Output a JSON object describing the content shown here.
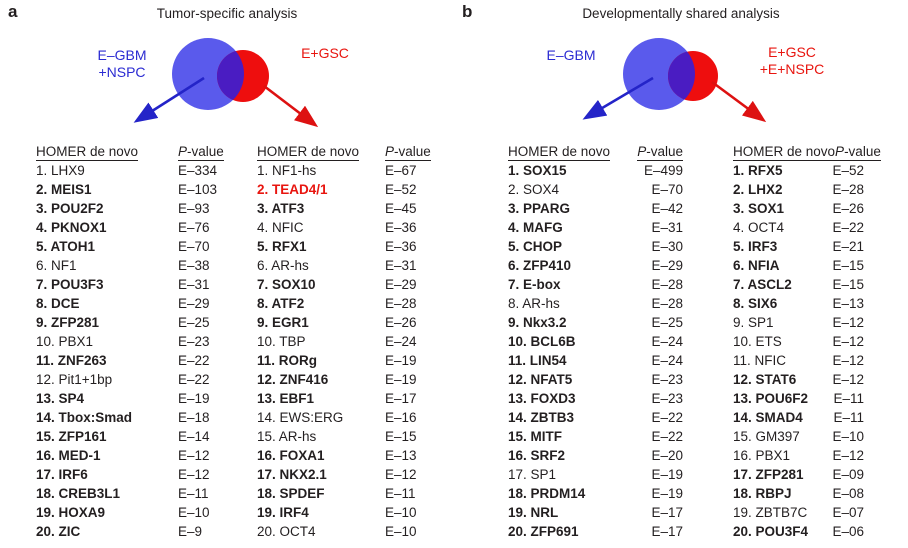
{
  "colors": {
    "blue_circle": "#5a5aec",
    "red_circle": "#ee0e0e",
    "overlap": "#4a1cc2",
    "blue_text": "#2b2bd2",
    "red_text": "#e8150f",
    "arrow_blue": "#2424c8",
    "arrow_red": "#dd1111",
    "text": "#231f20"
  },
  "shared": {
    "p_head_italic": "P",
    "p_head_rest": "-value",
    "homer_header": "HOMER de novo"
  },
  "panels": [
    {
      "letter": "a",
      "title": "Tumor-specific analysis",
      "venn": {
        "left_lines": [
          "E–GBM",
          "+NSPC"
        ],
        "right_lines": [
          "E+GSC"
        ]
      },
      "lists": [
        {
          "entries": [
            {
              "label": "1. LHX9",
              "p": "E–334",
              "bold": false
            },
            {
              "label": "2. MEIS1",
              "p": "E–103",
              "bold": true
            },
            {
              "label": "3. POU2F2",
              "p": "E–93",
              "bold": true
            },
            {
              "label": "4. PKNOX1",
              "p": "E–76",
              "bold": true
            },
            {
              "label": "5. ATOH1",
              "p": "E–70",
              "bold": true
            },
            {
              "label": "6. NF1",
              "p": "E–38",
              "bold": false
            },
            {
              "label": "7. POU3F3",
              "p": "E–31",
              "bold": true
            },
            {
              "label": "8. DCE",
              "p": "E–29",
              "bold": true
            },
            {
              "label": "9. ZFP281",
              "p": "E–25",
              "bold": true
            },
            {
              "label": "10. PBX1",
              "p": "E–23",
              "bold": false
            },
            {
              "label": "11. ZNF263",
              "p": "E–22",
              "bold": true
            },
            {
              "label": "12. Pit1+1bp",
              "p": "E–22",
              "bold": false
            },
            {
              "label": "13. SP4",
              "p": "E–19",
              "bold": true
            },
            {
              "label": "14. Tbox:Smad",
              "p": "E–18",
              "bold": true
            },
            {
              "label": "15. ZFP161",
              "p": "E–14",
              "bold": true
            },
            {
              "label": "16. MED-1",
              "p": "E–12",
              "bold": true
            },
            {
              "label": "17. IRF6",
              "p": "E–12",
              "bold": true
            },
            {
              "label": "18. CREB3L1",
              "p": "E–11",
              "bold": true
            },
            {
              "label": "19. HOXA9",
              "p": "E–10",
              "bold": true
            },
            {
              "label": "20. ZIC",
              "p": "E–9",
              "bold": true
            }
          ]
        },
        {
          "entries": [
            {
              "label": "1. NF1-hs",
              "p": "E–67",
              "bold": false
            },
            {
              "label": "2. TEAD4/1",
              "p": "E–52",
              "bold": true,
              "red": true
            },
            {
              "label": "3. ATF3",
              "p": "E–45",
              "bold": true
            },
            {
              "label": "4. NFIC",
              "p": "E–36",
              "bold": false
            },
            {
              "label": "5. RFX1",
              "p": "E–36",
              "bold": true
            },
            {
              "label": "6. AR-hs",
              "p": "E–31",
              "bold": false
            },
            {
              "label": "7. SOX10",
              "p": "E–29",
              "bold": true
            },
            {
              "label": "8. ATF2",
              "p": "E–28",
              "bold": true
            },
            {
              "label": "9. EGR1",
              "p": "E–26",
              "bold": true
            },
            {
              "label": "10. TBP",
              "p": "E–24",
              "bold": false
            },
            {
              "label": "11. RORg",
              "p": "E–19",
              "bold": true
            },
            {
              "label": "12. ZNF416",
              "p": "E–19",
              "bold": true
            },
            {
              "label": "13. EBF1",
              "p": "E–17",
              "bold": true
            },
            {
              "label": "14. EWS:ERG",
              "p": "E–16",
              "bold": false
            },
            {
              "label": "15. AR-hs",
              "p": "E–15",
              "bold": false
            },
            {
              "label": "16. FOXA1",
              "p": "E–13",
              "bold": true
            },
            {
              "label": "17. NKX2.1",
              "p": "E–12",
              "bold": true
            },
            {
              "label": "18. SPDEF",
              "p": "E–11",
              "bold": true
            },
            {
              "label": "19. IRF4",
              "p": "E–10",
              "bold": true
            },
            {
              "label": "20. OCT4",
              "p": "E–10",
              "bold": false
            }
          ]
        }
      ]
    },
    {
      "letter": "b",
      "title": "Developmentally shared analysis",
      "venn": {
        "left_lines": [
          "E–GBM"
        ],
        "right_lines": [
          "E+GSC",
          "+E+NSPC"
        ]
      },
      "lists": [
        {
          "entries": [
            {
              "label": "1. SOX15",
              "p": "E–499",
              "bold": true
            },
            {
              "label": "2. SOX4",
              "p": "E–70",
              "bold": false
            },
            {
              "label": "3. PPARG",
              "p": "E–42",
              "bold": true
            },
            {
              "label": "4. MAFG",
              "p": "E–31",
              "bold": true
            },
            {
              "label": "5. CHOP",
              "p": "E–30",
              "bold": true
            },
            {
              "label": "6. ZFP410",
              "p": "E–29",
              "bold": true
            },
            {
              "label": "7. E-box",
              "p": "E–28",
              "bold": true
            },
            {
              "label": "8. AR-hs",
              "p": "E–28",
              "bold": false
            },
            {
              "label": "9. Nkx3.2",
              "p": "E–25",
              "bold": true
            },
            {
              "label": "10. BCL6B",
              "p": "E–24",
              "bold": true
            },
            {
              "label": "11. LIN54",
              "p": "E–24",
              "bold": true
            },
            {
              "label": "12. NFAT5",
              "p": "E–23",
              "bold": true
            },
            {
              "label": "13. FOXD3",
              "p": "E–23",
              "bold": true
            },
            {
              "label": "14. ZBTB3",
              "p": "E–22",
              "bold": true
            },
            {
              "label": "15. MITF",
              "p": "E–22",
              "bold": true
            },
            {
              "label": "16. SRF2",
              "p": "E–20",
              "bold": true
            },
            {
              "label": "17. SP1",
              "p": "E–19",
              "bold": false
            },
            {
              "label": "18. PRDM14",
              "p": "E–19",
              "bold": true
            },
            {
              "label": "19. NRL",
              "p": "E–17",
              "bold": true
            },
            {
              "label": "20. ZFP691",
              "p": "E–17",
              "bold": true
            }
          ]
        },
        {
          "entries": [
            {
              "label": "1. RFX5",
              "p": "E–52",
              "bold": true
            },
            {
              "label": "2. LHX2",
              "p": "E–28",
              "bold": true
            },
            {
              "label": "3. SOX1",
              "p": "E–26",
              "bold": true
            },
            {
              "label": "4. OCT4",
              "p": "E–22",
              "bold": false
            },
            {
              "label": "5. IRF3",
              "p": "E–21",
              "bold": true
            },
            {
              "label": "6. NFIA",
              "p": "E–15",
              "bold": true
            },
            {
              "label": "7. ASCL2",
              "p": "E–15",
              "bold": true
            },
            {
              "label": "8. SIX6",
              "p": "E–13",
              "bold": true
            },
            {
              "label": "9. SP1",
              "p": "E–12",
              "bold": false
            },
            {
              "label": "10. ETS",
              "p": "E–12",
              "bold": false
            },
            {
              "label": "11. NFIC",
              "p": "E–12",
              "bold": false
            },
            {
              "label": "12. STAT6",
              "p": "E–12",
              "bold": true
            },
            {
              "label": "13. POU6F2",
              "p": "E–11",
              "bold": true
            },
            {
              "label": "14. SMAD4",
              "p": "E–11",
              "bold": true
            },
            {
              "label": "15. GM397",
              "p": "E–10",
              "bold": false
            },
            {
              "label": "16. PBX1",
              "p": "E–12",
              "bold": false
            },
            {
              "label": "17. ZFP281",
              "p": "E–09",
              "bold": true
            },
            {
              "label": "18. RBPJ",
              "p": "E–08",
              "bold": true
            },
            {
              "label": "19. ZBTB7C",
              "p": "E–07",
              "bold": false
            },
            {
              "label": "20. POU3F4",
              "p": "E–06",
              "bold": true
            }
          ]
        }
      ]
    }
  ]
}
